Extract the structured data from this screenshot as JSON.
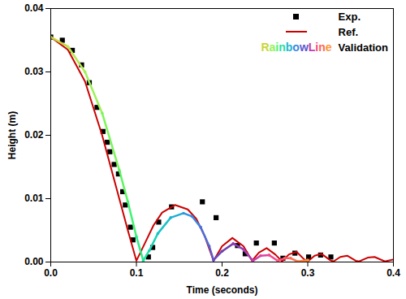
{
  "chart_data": {
    "type": "line",
    "x_label": "Time (seconds)",
    "y_label": "Height (m)",
    "xlim": [
      0,
      0.4
    ],
    "xticks": [
      {
        "value": 0,
        "label": "0.0"
      },
      0.1,
      0.2,
      0.3,
      0.4
    ],
    "ylim": [
      0,
      0.04
    ],
    "yticks": [
      {
        "value": 0,
        "label": "0.00"
      },
      0.01,
      0.02,
      0.03,
      0.04
    ],
    "legend": "top-right",
    "annotations": [
      "Rainbow Line"
    ],
    "series": [
      {
        "name": "Exp.",
        "type": "scatter",
        "marker": "square",
        "color": "#000000",
        "x": [
          0,
          0.0135,
          0.0252,
          0.036,
          0.045,
          0.054,
          0.061,
          0.066,
          0.069,
          0.074,
          0.079,
          0.084,
          0.087,
          0.093,
          0.096,
          0.114,
          0.119,
          0.126,
          0.141,
          0.177,
          0.193,
          0.218,
          0.227,
          0.24,
          0.261,
          0.271,
          0.285,
          0.301,
          0.315,
          0.327
        ],
        "values": [
          0.0355,
          0.035,
          0.0334,
          0.0311,
          0.0283,
          0.0244,
          0.0206,
          0.0189,
          0.0174,
          0.0154,
          0.0139,
          0.0111,
          0.009,
          0.0055,
          0.0035,
          0.0008,
          0.0023,
          0.0063,
          0.0087,
          0.0095,
          0.007,
          0.0026,
          0.0013,
          0.003,
          0.003,
          0.0006,
          0.0014,
          0.0008,
          0.0011,
          0.0008
        ]
      },
      {
        "name": "Ref.",
        "type": "line",
        "color": "#cc0000",
        "x": [
          0,
          0.02,
          0.04,
          0.06,
          0.08,
          0.09,
          0.1,
          0.11,
          0.12,
          0.13,
          0.145,
          0.16,
          0.17,
          0.18,
          0.19,
          0.2,
          0.212,
          0.225,
          0.235,
          0.243,
          0.252,
          0.262,
          0.27,
          0.278,
          0.287,
          0.296,
          0.3,
          0.308,
          0.316,
          0.326,
          0.33,
          0.338,
          0.346,
          0.356,
          0.36,
          0.37,
          0.378,
          0.39,
          0.4
        ],
        "values": [
          0.0355,
          0.0335,
          0.0285,
          0.02,
          0.01,
          0.005,
          0.0002,
          0.003,
          0.0058,
          0.0078,
          0.009,
          0.0083,
          0.0068,
          0.004,
          0.0002,
          0.0025,
          0.0038,
          0.0025,
          0.0002,
          0.0015,
          0.0022,
          0.0012,
          0.0001,
          0.0012,
          0.0016,
          0.0004,
          0.0001,
          0.001,
          0.0013,
          0.0003,
          0.0001,
          0.0008,
          0.001,
          0.0002,
          0.0001,
          0.0007,
          0.0008,
          0.0001,
          0.0004
        ]
      },
      {
        "name": "Validation",
        "type": "line",
        "marker": "circle",
        "color": "rainbow",
        "x": [
          0,
          0.02,
          0.04,
          0.06,
          0.08,
          0.09,
          0.1,
          0.108,
          0.115,
          0.125,
          0.14,
          0.155,
          0.165,
          0.175,
          0.185,
          0.19,
          0.2,
          0.213,
          0.225,
          0.236,
          0.245,
          0.255,
          0.265,
          0.273,
          0.28,
          0.288,
          0.3
        ],
        "values": [
          0.0355,
          0.034,
          0.03,
          0.0235,
          0.0145,
          0.0095,
          0.004,
          0.0002,
          0.0018,
          0.0045,
          0.007,
          0.0077,
          0.0072,
          0.0055,
          0.0025,
          0.0003,
          0.0017,
          0.0029,
          0.002,
          0.0002,
          0.001,
          0.0011,
          0.0002,
          0.0006,
          0.0006,
          0.0001,
          0.0003
        ]
      }
    ]
  }
}
